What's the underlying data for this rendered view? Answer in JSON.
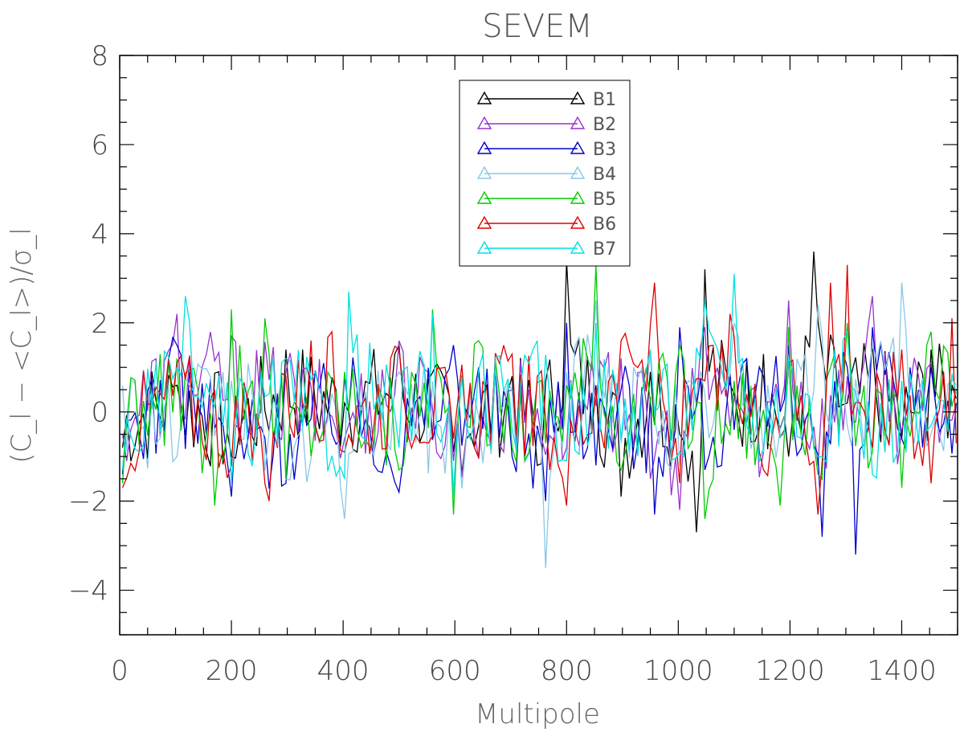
{
  "chart_data": {
    "type": "line",
    "title": "SEVEM",
    "xlabel": "Multipole",
    "ylabel": "(C_l − <C_l>)/σ_l",
    "xlim": [
      0,
      1500
    ],
    "ylim": [
      -5,
      8
    ],
    "x_tick_labels": [
      "0",
      "200",
      "400",
      "600",
      "800",
      "1000",
      "1200",
      "1400"
    ],
    "y_tick_labels": [
      "−4",
      "−2",
      "0",
      "2",
      "4",
      "6",
      "8"
    ],
    "grid": false,
    "legend_position": "top-center",
    "series": [
      {
        "name": "B1",
        "color": "#000000",
        "x": [
          0,
          100,
          200,
          300,
          400,
          500,
          600,
          700,
          750,
          800,
          850,
          900,
          950,
          1000,
          1030,
          1050,
          1100,
          1150,
          1200,
          1240,
          1300,
          1350,
          1400,
          1450,
          1500
        ],
        "values": [
          -0.8,
          0.6,
          -1.0,
          1.4,
          0.2,
          1.5,
          -0.9,
          0.8,
          -1.2,
          3.4,
          0.6,
          -1.9,
          0.9,
          -0.5,
          -2.7,
          3.2,
          0.4,
          1.3,
          -1.0,
          3.6,
          0.2,
          1.5,
          -0.6,
          1.4,
          0.3
        ]
      },
      {
        "name": "B2",
        "color": "#9933cc",
        "x": [
          0,
          100,
          200,
          300,
          400,
          500,
          600,
          700,
          800,
          900,
          950,
          1000,
          1050,
          1100,
          1150,
          1200,
          1250,
          1300,
          1350,
          1400,
          1450,
          1500
        ],
        "values": [
          -0.5,
          2.2,
          1.7,
          0.9,
          -0.6,
          1.6,
          -1.1,
          0.5,
          -0.8,
          1.2,
          -1.5,
          -2.2,
          1.9,
          0.3,
          -0.9,
          2.5,
          -1.2,
          0.8,
          2.6,
          -0.4,
          1.1,
          0.2
        ]
      },
      {
        "name": "B3",
        "color": "#0000cc",
        "x": [
          0,
          100,
          200,
          300,
          400,
          500,
          600,
          700,
          760,
          800,
          850,
          900,
          960,
          1000,
          1050,
          1100,
          1150,
          1200,
          1260,
          1300,
          1320,
          1350,
          1400,
          1450,
          1500
        ],
        "values": [
          -1.4,
          1.5,
          -1.9,
          -1.6,
          0.8,
          -1.8,
          1.5,
          -1.0,
          -2.0,
          2.0,
          -1.2,
          0.5,
          -2.3,
          1.9,
          -1.3,
          -0.4,
          0.8,
          1.5,
          -2.8,
          1.0,
          -3.2,
          1.9,
          -0.6,
          1.0,
          0.2
        ]
      },
      {
        "name": "B4",
        "color": "#88c8e8",
        "x": [
          0,
          100,
          200,
          300,
          400,
          500,
          600,
          700,
          760,
          800,
          850,
          900,
          950,
          1000,
          1050,
          1100,
          1150,
          1200,
          1250,
          1300,
          1350,
          1400,
          1450,
          1500
        ],
        "values": [
          0.6,
          -1.0,
          0.7,
          -1.5,
          -2.4,
          0.9,
          -1.8,
          0.5,
          -3.5,
          0.9,
          2.5,
          -0.7,
          1.3,
          -1.2,
          0.4,
          2.0,
          -0.9,
          1.0,
          2.4,
          -0.3,
          1.5,
          2.9,
          -0.5,
          0.6
        ]
      },
      {
        "name": "B5",
        "color": "#00cc00",
        "x": [
          0,
          100,
          170,
          200,
          260,
          300,
          400,
          500,
          560,
          600,
          640,
          700,
          800,
          850,
          900,
          1000,
          1050,
          1100,
          1180,
          1200,
          1250,
          1300,
          1350,
          1400,
          1450,
          1500
        ],
        "values": [
          -1.6,
          1.2,
          -2.1,
          2.3,
          2.1,
          -1.5,
          0.9,
          -1.3,
          2.3,
          -2.3,
          1.6,
          -0.8,
          0.6,
          3.3,
          -1.3,
          1.5,
          -2.4,
          0.7,
          -2.1,
          1.9,
          -1.4,
          2.0,
          -0.9,
          -1.7,
          1.8,
          0.5
        ]
      },
      {
        "name": "B6",
        "color": "#dd0000",
        "x": [
          0,
          100,
          200,
          270,
          300,
          380,
          400,
          500,
          600,
          700,
          800,
          850,
          900,
          960,
          1000,
          1050,
          1090,
          1150,
          1200,
          1250,
          1270,
          1300,
          1350,
          1400,
          1450,
          1490,
          1500
        ],
        "values": [
          -1.7,
          1.1,
          -1.2,
          -2.0,
          0.8,
          1.8,
          -0.9,
          1.4,
          -0.6,
          1.3,
          -2.1,
          0.5,
          1.6,
          2.9,
          -1.6,
          0.7,
          2.2,
          -1.3,
          1.1,
          -2.3,
          2.9,
          3.3,
          -0.8,
          1.4,
          -1.6,
          2.1,
          -0.7
        ]
      },
      {
        "name": "B7",
        "color": "#00e0e0",
        "x": [
          0,
          100,
          120,
          200,
          300,
          400,
          410,
          500,
          560,
          600,
          650,
          700,
          750,
          800,
          850,
          900,
          950,
          1000,
          1050,
          1100,
          1150,
          1200,
          1250,
          1300,
          1350,
          1400,
          1450,
          1500
        ],
        "values": [
          -1.3,
          1.0,
          2.6,
          -1.6,
          1.2,
          -1.5,
          2.7,
          -0.8,
          2.2,
          -1.9,
          1.3,
          -0.4,
          1.6,
          -1.1,
          2.0,
          -0.6,
          1.4,
          -0.9,
          2.5,
          3.1,
          -0.8,
          1.2,
          -1.0,
          1.8,
          -1.4,
          0.7,
          -0.3,
          0.4
        ]
      }
    ]
  }
}
